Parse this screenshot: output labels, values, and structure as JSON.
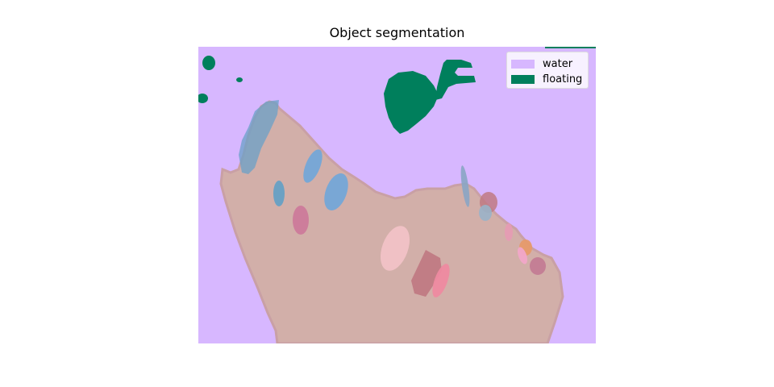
{
  "figure": {
    "title": "Object segmentation"
  },
  "colors": {
    "water": "#d7b7ff",
    "floating": "#007f5c",
    "landmass": "#d2afa9",
    "landmass_edge": "#c9a0a5"
  },
  "legend": {
    "placement": "top-right",
    "items": [
      {
        "label": "water",
        "color": "#d7b7ff"
      },
      {
        "label": "floating",
        "color": "#007f5c"
      }
    ]
  }
}
